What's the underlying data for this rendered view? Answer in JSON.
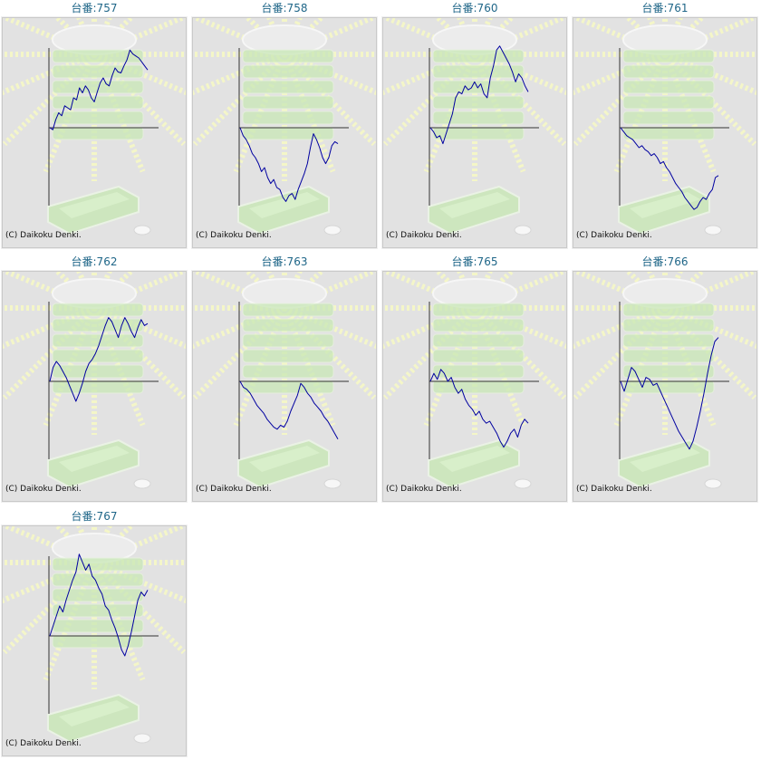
{
  "colors": {
    "title": "#1f6688",
    "line": "#0000a0",
    "axis": "#333333",
    "panel": "#e2e2e2",
    "art": "#c9e8b6",
    "rays": "#f4f6c8"
  },
  "credit": "(C) Daikoku Denki.",
  "chart_data": [
    {
      "type": "line",
      "title": "台番:757",
      "y": [
        0,
        -2,
        8,
        15,
        12,
        22,
        20,
        18,
        30,
        28,
        40,
        35,
        42,
        38,
        30,
        26,
        36,
        45,
        50,
        44,
        42,
        52,
        60,
        56,
        55,
        62,
        68,
        78,
        74,
        72,
        70,
        66,
        62,
        58
      ]
    },
    {
      "type": "line",
      "title": "台番:758",
      "y": [
        0,
        -8,
        -12,
        -18,
        -26,
        -30,
        -36,
        -44,
        -40,
        -50,
        -56,
        -52,
        -60,
        -62,
        -70,
        -74,
        -68,
        -66,
        -72,
        -62,
        -54,
        -46,
        -36,
        -20,
        -6,
        -12,
        -20,
        -30,
        -36,
        -30,
        -18,
        -14,
        -16
      ]
    },
    {
      "type": "line",
      "title": "台番:760",
      "y": [
        0,
        -4,
        -10,
        -8,
        -16,
        -6,
        4,
        14,
        30,
        36,
        34,
        42,
        38,
        40,
        46,
        40,
        44,
        34,
        30,
        50,
        62,
        78,
        82,
        76,
        70,
        64,
        56,
        46,
        54,
        50,
        42,
        36
      ]
    },
    {
      "type": "line",
      "title": "台番:761",
      "y": [
        0,
        -4,
        -8,
        -10,
        -12,
        -16,
        -20,
        -18,
        -22,
        -24,
        -28,
        -26,
        -30,
        -36,
        -34,
        -40,
        -44,
        -50,
        -56,
        -60,
        -64,
        -70,
        -74,
        -78,
        -82,
        -80,
        -74,
        -70,
        -72,
        -66,
        -62,
        -50,
        -48
      ]
    },
    {
      "type": "line",
      "title": "台番:762",
      "y": [
        0,
        14,
        20,
        16,
        10,
        4,
        -4,
        -12,
        -20,
        -12,
        -2,
        10,
        18,
        22,
        28,
        36,
        46,
        56,
        64,
        60,
        52,
        44,
        56,
        64,
        58,
        50,
        44,
        54,
        62,
        56,
        58
      ]
    },
    {
      "type": "line",
      "title": "台番:763",
      "y": [
        0,
        -6,
        -8,
        -12,
        -18,
        -24,
        -28,
        -32,
        -38,
        -42,
        -46,
        -48,
        -44,
        -46,
        -40,
        -30,
        -22,
        -14,
        -2,
        -6,
        -12,
        -16,
        -22,
        -26,
        -30,
        -36,
        -40,
        -46,
        -52,
        -58
      ]
    },
    {
      "type": "line",
      "title": "台番:765",
      "y": [
        0,
        8,
        2,
        12,
        8,
        0,
        4,
        -6,
        -12,
        -8,
        -18,
        -24,
        -28,
        -34,
        -30,
        -38,
        -42,
        -40,
        -46,
        -52,
        -60,
        -66,
        -60,
        -52,
        -48,
        -56,
        -44,
        -38,
        -42
      ]
    },
    {
      "type": "line",
      "title": "台番:766",
      "y": [
        0,
        -10,
        2,
        14,
        10,
        2,
        -6,
        4,
        2,
        -4,
        -2,
        -10,
        -18,
        -26,
        -34,
        -42,
        -50,
        -56,
        -62,
        -68,
        -60,
        -46,
        -30,
        -12,
        8,
        26,
        40,
        44
      ]
    },
    {
      "type": "line",
      "title": "台番:767",
      "y": [
        0,
        10,
        20,
        30,
        24,
        36,
        46,
        56,
        64,
        82,
        74,
        66,
        72,
        60,
        56,
        48,
        42,
        30,
        26,
        16,
        8,
        -2,
        -14,
        -20,
        -10,
        4,
        20,
        36,
        44,
        40,
        46
      ]
    }
  ]
}
